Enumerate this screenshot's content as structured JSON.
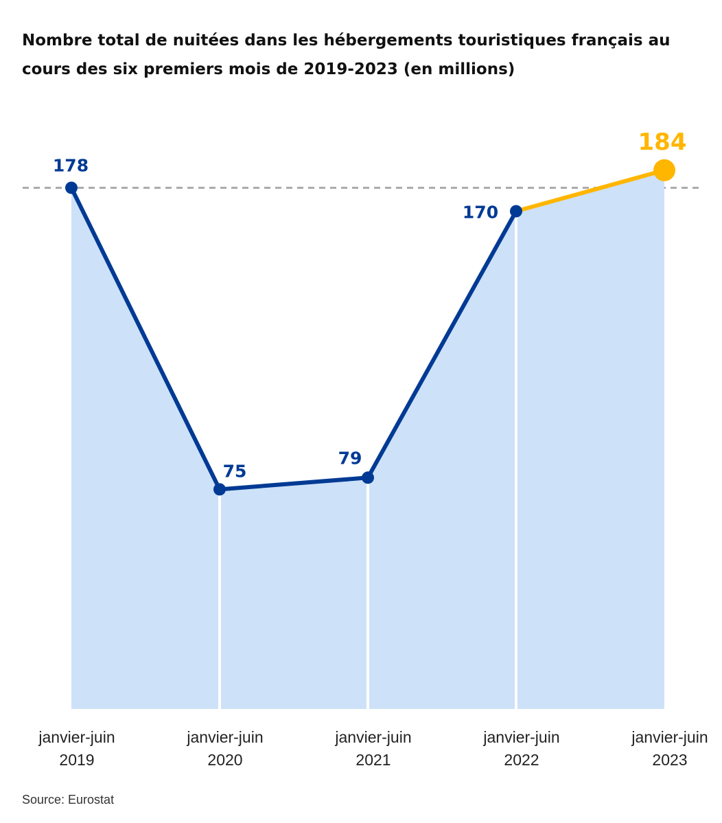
{
  "chart_data": {
    "type": "line",
    "title": "Nombre total de nuitées dans les hébergements touristiques français au cours des six premiers mois de 2019-2023 (en millions)",
    "categories": [
      [
        "janvier-juin",
        "2019"
      ],
      [
        "janvier-juin",
        "2020"
      ],
      [
        "janvier-juin",
        "2021"
      ],
      [
        "janvier-juin",
        "2022"
      ],
      [
        "janvier-juin",
        "2023"
      ]
    ],
    "values": [
      178,
      75,
      79,
      170,
      184
    ],
    "labels": [
      "178",
      "75",
      "79",
      "170",
      "184"
    ],
    "ylim": [
      0,
      184
    ],
    "reference_line": 178,
    "grid": false,
    "colors": {
      "line": "#003A94",
      "highlight": "#FFB600",
      "fill": "#CDE1F8",
      "reference": "#AAAAAA"
    },
    "source": "Source: Eurostat"
  }
}
